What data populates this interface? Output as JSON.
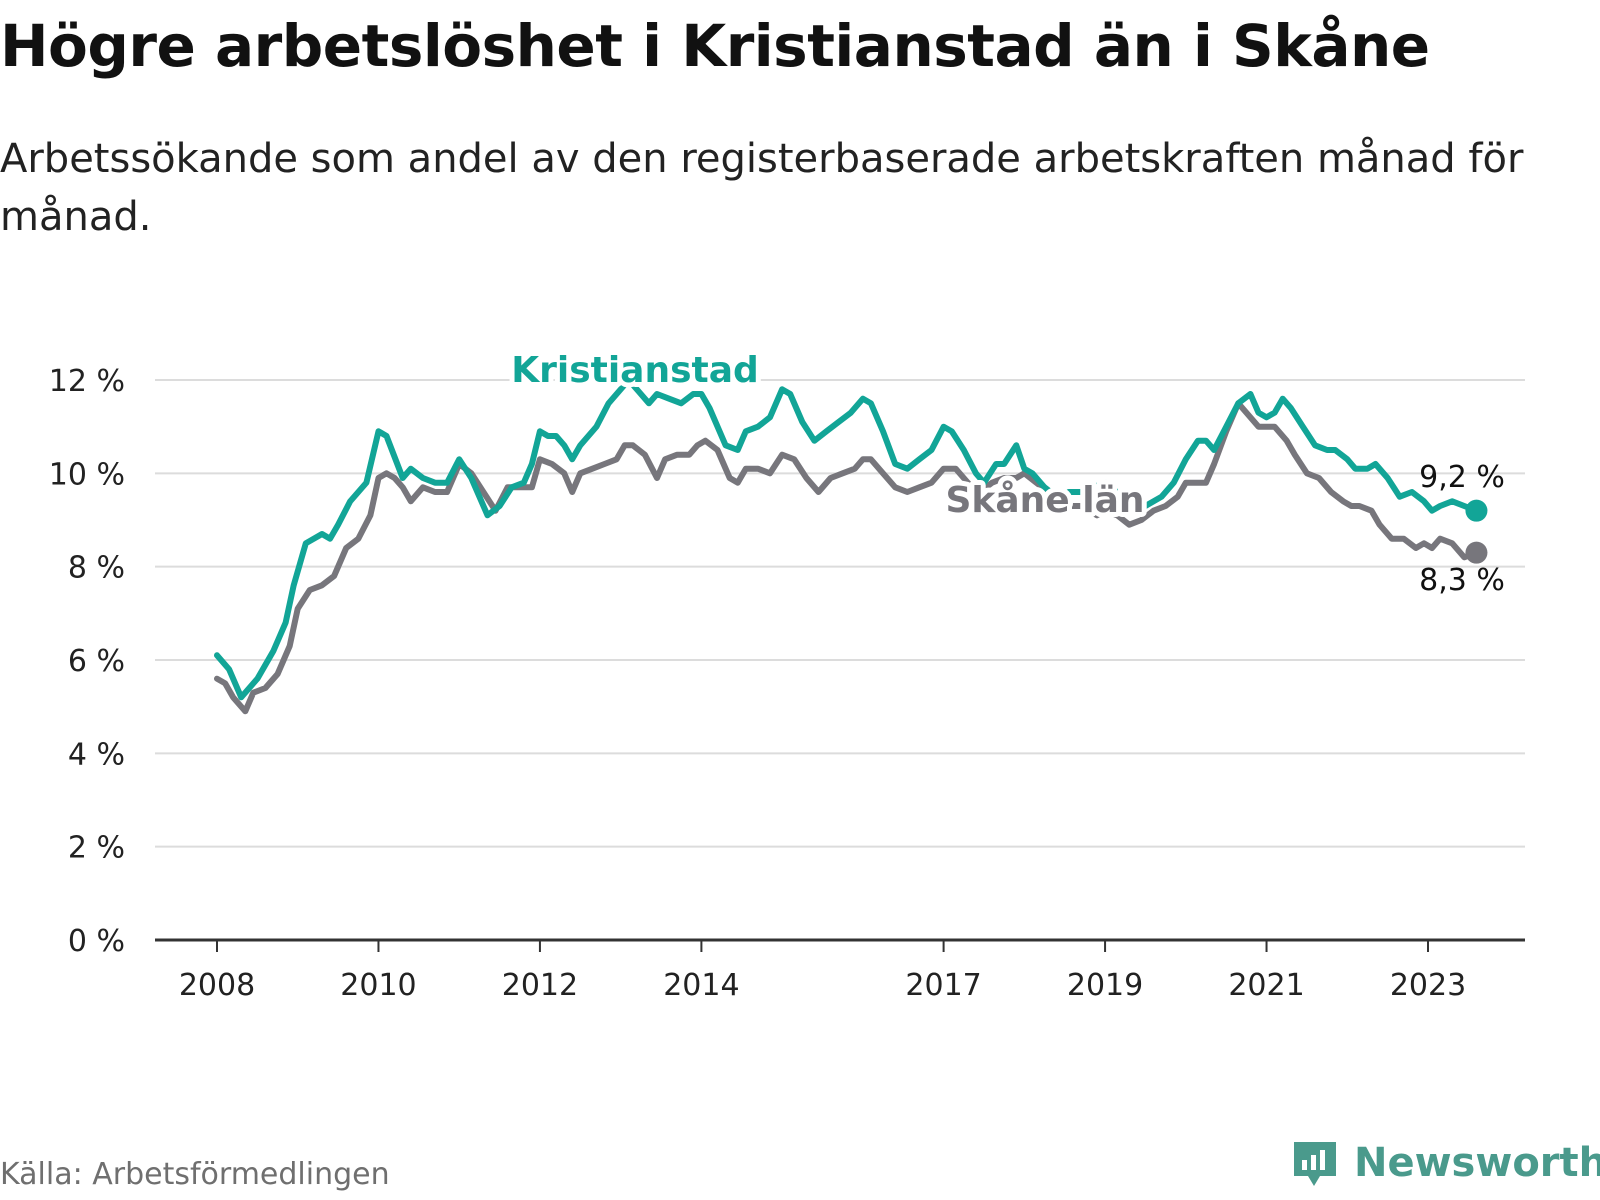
{
  "title": "Högre arbetslöshet i Kristianstad än i Skåne",
  "subtitle": "Arbetssökande som andel av den registerbaserade arbetskraften månad för månad.",
  "source": "Källa: Arbetsförmedlingen",
  "brand": {
    "name": "Newsworthy",
    "icon": "newsworthy-logo-icon",
    "color": "#4a9a8c"
  },
  "colors": {
    "kristianstad": "#12a597",
    "skane": "#77767c",
    "grid": "#dcdcdc",
    "axis": "#333333"
  },
  "chart_data": {
    "type": "line",
    "title": "Högre arbetslöshet i Kristianstad än i Skåne",
    "xlabel": "",
    "ylabel": "",
    "ylim": [
      0,
      12
    ],
    "xlim": [
      2007.62,
      2024.0
    ],
    "grid": true,
    "y_ticks": [
      {
        "value": 0,
        "label": "0 %"
      },
      {
        "value": 2,
        "label": "2 %"
      },
      {
        "value": 4,
        "label": "4 %"
      },
      {
        "value": 6,
        "label": "6 %"
      },
      {
        "value": 8,
        "label": "8 %"
      },
      {
        "value": 10,
        "label": "10 %"
      },
      {
        "value": 12,
        "label": "12 %"
      }
    ],
    "x_ticks": [
      {
        "value": 2008.0,
        "label": "2008"
      },
      {
        "value": 2010.0,
        "label": "2010"
      },
      {
        "value": 2012.0,
        "label": "2012"
      },
      {
        "value": 2014.0,
        "label": "2014"
      },
      {
        "value": 2017.0,
        "label": "2017"
      },
      {
        "value": 2019.0,
        "label": "2019"
      },
      {
        "value": 2021.0,
        "label": "2021"
      },
      {
        "value": 2023.0,
        "label": "2023"
      }
    ],
    "series": [
      {
        "name": "Kristianstad",
        "color": "#12a597",
        "end_label": "9,2 %",
        "points": [
          [
            2008.0,
            6.1
          ],
          [
            2008.15,
            5.8
          ],
          [
            2008.3,
            5.2
          ],
          [
            2008.5,
            5.6
          ],
          [
            2008.7,
            6.2
          ],
          [
            2008.85,
            6.8
          ],
          [
            2008.95,
            7.6
          ],
          [
            2009.1,
            8.5
          ],
          [
            2009.3,
            8.7
          ],
          [
            2009.4,
            8.6
          ],
          [
            2009.5,
            8.9
          ],
          [
            2009.65,
            9.4
          ],
          [
            2009.85,
            9.8
          ],
          [
            2010.0,
            10.9
          ],
          [
            2010.1,
            10.8
          ],
          [
            2010.3,
            9.9
          ],
          [
            2010.4,
            10.1
          ],
          [
            2010.55,
            9.9
          ],
          [
            2010.7,
            9.8
          ],
          [
            2010.85,
            9.8
          ],
          [
            2011.0,
            10.3
          ],
          [
            2011.15,
            9.9
          ],
          [
            2011.35,
            9.1
          ],
          [
            2011.5,
            9.3
          ],
          [
            2011.65,
            9.7
          ],
          [
            2011.8,
            9.8
          ],
          [
            2011.9,
            10.2
          ],
          [
            2012.0,
            10.9
          ],
          [
            2012.1,
            10.8
          ],
          [
            2012.2,
            10.8
          ],
          [
            2012.3,
            10.6
          ],
          [
            2012.4,
            10.3
          ],
          [
            2012.5,
            10.6
          ],
          [
            2012.7,
            11.0
          ],
          [
            2012.85,
            11.5
          ],
          [
            2013.0,
            11.8
          ],
          [
            2013.1,
            12.0
          ],
          [
            2013.2,
            11.8
          ],
          [
            2013.35,
            11.5
          ],
          [
            2013.45,
            11.7
          ],
          [
            2013.6,
            11.6
          ],
          [
            2013.75,
            11.5
          ],
          [
            2013.9,
            11.7
          ],
          [
            2014.0,
            11.7
          ],
          [
            2014.1,
            11.4
          ],
          [
            2014.3,
            10.6
          ],
          [
            2014.45,
            10.5
          ],
          [
            2014.55,
            10.9
          ],
          [
            2014.7,
            11.0
          ],
          [
            2014.85,
            11.2
          ],
          [
            2015.0,
            11.8
          ],
          [
            2015.1,
            11.7
          ],
          [
            2015.25,
            11.1
          ],
          [
            2015.4,
            10.7
          ],
          [
            2015.55,
            10.9
          ],
          [
            2015.7,
            11.1
          ],
          [
            2015.85,
            11.3
          ],
          [
            2016.0,
            11.6
          ],
          [
            2016.1,
            11.5
          ],
          [
            2016.25,
            10.9
          ],
          [
            2016.4,
            10.2
          ],
          [
            2016.55,
            10.1
          ],
          [
            2016.7,
            10.3
          ],
          [
            2016.85,
            10.5
          ],
          [
            2017.0,
            11.0
          ],
          [
            2017.1,
            10.9
          ],
          [
            2017.25,
            10.5
          ],
          [
            2017.4,
            10.0
          ],
          [
            2017.5,
            9.8
          ],
          [
            2017.65,
            10.2
          ],
          [
            2017.75,
            10.2
          ],
          [
            2017.9,
            10.6
          ],
          [
            2018.0,
            10.1
          ],
          [
            2018.1,
            10.0
          ],
          [
            2018.25,
            9.7
          ],
          [
            2018.4,
            9.5
          ],
          [
            2018.55,
            9.6
          ],
          [
            2018.7,
            9.6
          ],
          [
            2018.85,
            9.7
          ],
          [
            2019.0,
            9.8
          ],
          [
            2019.1,
            9.7
          ],
          [
            2019.3,
            9.2
          ],
          [
            2019.5,
            9.3
          ],
          [
            2019.7,
            9.5
          ],
          [
            2019.85,
            9.8
          ],
          [
            2020.0,
            10.3
          ],
          [
            2020.15,
            10.7
          ],
          [
            2020.25,
            10.7
          ],
          [
            2020.35,
            10.5
          ],
          [
            2020.5,
            11.0
          ],
          [
            2020.65,
            11.5
          ],
          [
            2020.8,
            11.7
          ],
          [
            2020.9,
            11.3
          ],
          [
            2021.0,
            11.2
          ],
          [
            2021.1,
            11.3
          ],
          [
            2021.2,
            11.6
          ],
          [
            2021.3,
            11.4
          ],
          [
            2021.45,
            11.0
          ],
          [
            2021.6,
            10.6
          ],
          [
            2021.75,
            10.5
          ],
          [
            2021.85,
            10.5
          ],
          [
            2022.0,
            10.3
          ],
          [
            2022.1,
            10.1
          ],
          [
            2022.25,
            10.1
          ],
          [
            2022.35,
            10.2
          ],
          [
            2022.5,
            9.9
          ],
          [
            2022.65,
            9.5
          ],
          [
            2022.8,
            9.6
          ],
          [
            2022.95,
            9.4
          ],
          [
            2023.05,
            9.2
          ],
          [
            2023.15,
            9.3
          ],
          [
            2023.3,
            9.4
          ],
          [
            2023.45,
            9.3
          ],
          [
            2023.6,
            9.2
          ]
        ]
      },
      {
        "name": "Skåne län",
        "color": "#77767c",
        "end_label": "8,3 %",
        "points": [
          [
            2008.0,
            5.6
          ],
          [
            2008.1,
            5.5
          ],
          [
            2008.2,
            5.2
          ],
          [
            2008.35,
            4.9
          ],
          [
            2008.45,
            5.3
          ],
          [
            2008.6,
            5.4
          ],
          [
            2008.75,
            5.7
          ],
          [
            2008.9,
            6.3
          ],
          [
            2009.0,
            7.1
          ],
          [
            2009.15,
            7.5
          ],
          [
            2009.3,
            7.6
          ],
          [
            2009.45,
            7.8
          ],
          [
            2009.6,
            8.4
          ],
          [
            2009.75,
            8.6
          ],
          [
            2009.9,
            9.1
          ],
          [
            2010.0,
            9.9
          ],
          [
            2010.1,
            10.0
          ],
          [
            2010.2,
            9.9
          ],
          [
            2010.3,
            9.7
          ],
          [
            2010.4,
            9.4
          ],
          [
            2010.55,
            9.7
          ],
          [
            2010.7,
            9.6
          ],
          [
            2010.85,
            9.6
          ],
          [
            2011.0,
            10.2
          ],
          [
            2011.15,
            10.0
          ],
          [
            2011.3,
            9.6
          ],
          [
            2011.45,
            9.2
          ],
          [
            2011.6,
            9.7
          ],
          [
            2011.75,
            9.7
          ],
          [
            2011.9,
            9.7
          ],
          [
            2012.0,
            10.3
          ],
          [
            2012.15,
            10.2
          ],
          [
            2012.3,
            10.0
          ],
          [
            2012.4,
            9.6
          ],
          [
            2012.5,
            10.0
          ],
          [
            2012.65,
            10.1
          ],
          [
            2012.8,
            10.2
          ],
          [
            2012.95,
            10.3
          ],
          [
            2013.05,
            10.6
          ],
          [
            2013.15,
            10.6
          ],
          [
            2013.3,
            10.4
          ],
          [
            2013.45,
            9.9
          ],
          [
            2013.55,
            10.3
          ],
          [
            2013.7,
            10.4
          ],
          [
            2013.85,
            10.4
          ],
          [
            2013.95,
            10.6
          ],
          [
            2014.05,
            10.7
          ],
          [
            2014.2,
            10.5
          ],
          [
            2014.35,
            9.9
          ],
          [
            2014.45,
            9.8
          ],
          [
            2014.55,
            10.1
          ],
          [
            2014.7,
            10.1
          ],
          [
            2014.85,
            10.0
          ],
          [
            2015.0,
            10.4
          ],
          [
            2015.15,
            10.3
          ],
          [
            2015.3,
            9.9
          ],
          [
            2015.45,
            9.6
          ],
          [
            2015.6,
            9.9
          ],
          [
            2015.75,
            10.0
          ],
          [
            2015.9,
            10.1
          ],
          [
            2016.0,
            10.3
          ],
          [
            2016.1,
            10.3
          ],
          [
            2016.25,
            10.0
          ],
          [
            2016.4,
            9.7
          ],
          [
            2016.55,
            9.6
          ],
          [
            2016.7,
            9.7
          ],
          [
            2016.85,
            9.8
          ],
          [
            2017.0,
            10.1
          ],
          [
            2017.15,
            10.1
          ],
          [
            2017.3,
            9.8
          ],
          [
            2017.45,
            9.6
          ],
          [
            2017.6,
            9.8
          ],
          [
            2017.75,
            9.9
          ],
          [
            2017.9,
            9.9
          ],
          [
            2018.0,
            10.0
          ],
          [
            2018.15,
            9.8
          ],
          [
            2018.3,
            9.6
          ],
          [
            2018.5,
            9.3
          ],
          [
            2018.7,
            9.3
          ],
          [
            2018.9,
            9.1
          ],
          [
            2019.0,
            9.2
          ],
          [
            2019.15,
            9.1
          ],
          [
            2019.3,
            8.9
          ],
          [
            2019.45,
            9.0
          ],
          [
            2019.6,
            9.2
          ],
          [
            2019.75,
            9.3
          ],
          [
            2019.9,
            9.5
          ],
          [
            2020.0,
            9.8
          ],
          [
            2020.1,
            9.8
          ],
          [
            2020.25,
            9.8
          ],
          [
            2020.35,
            10.2
          ],
          [
            2020.5,
            10.9
          ],
          [
            2020.65,
            11.5
          ],
          [
            2020.8,
            11.2
          ],
          [
            2020.9,
            11.0
          ],
          [
            2021.0,
            11.0
          ],
          [
            2021.1,
            11.0
          ],
          [
            2021.25,
            10.7
          ],
          [
            2021.35,
            10.4
          ],
          [
            2021.5,
            10.0
          ],
          [
            2021.65,
            9.9
          ],
          [
            2021.8,
            9.6
          ],
          [
            2021.95,
            9.4
          ],
          [
            2022.05,
            9.3
          ],
          [
            2022.15,
            9.3
          ],
          [
            2022.3,
            9.2
          ],
          [
            2022.4,
            8.9
          ],
          [
            2022.55,
            8.6
          ],
          [
            2022.7,
            8.6
          ],
          [
            2022.85,
            8.4
          ],
          [
            2022.95,
            8.5
          ],
          [
            2023.05,
            8.4
          ],
          [
            2023.15,
            8.6
          ],
          [
            2023.3,
            8.5
          ],
          [
            2023.45,
            8.2
          ],
          [
            2023.6,
            8.3
          ]
        ]
      }
    ]
  }
}
